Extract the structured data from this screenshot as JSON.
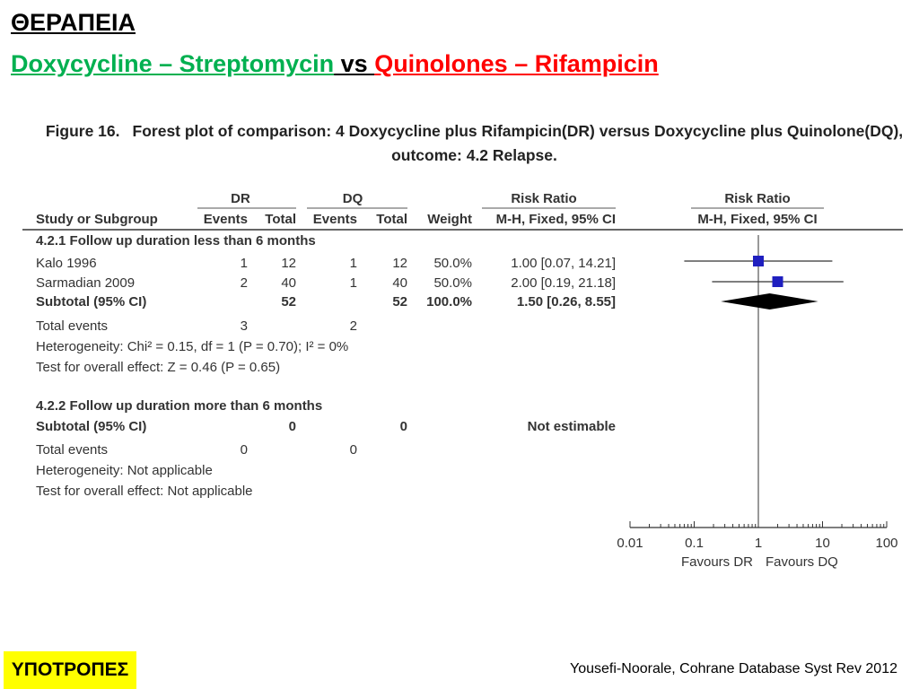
{
  "slide": {
    "title": "ΘΕΡΑΠΕΙΑ",
    "subtitle_left": "Doxycycline – Streptomycin",
    "subtitle_vs": " vs ",
    "subtitle_right": "Quinolones – Rifampicin",
    "badge": "ΥΠΟΤΡΟΠΕΣ",
    "source": "Yousefi-Noorale, Cohrane Database Syst Rev 2012"
  },
  "figure": {
    "caption_label": "Figure 16.",
    "caption_text": "Forest plot of comparison: 4 Doxycycline plus Rifampicin(DR) versus Doxycycline plus Quinolone(DQ), outcome: 4.2 Relapse."
  },
  "table": {
    "group_headers": {
      "dr": "DR",
      "dq": "DQ",
      "rr": "Risk Ratio",
      "plot": "Risk Ratio"
    },
    "col_headers": {
      "study": "Study or Subgroup",
      "dr_events": "Events",
      "dr_total": "Total",
      "dq_events": "Events",
      "dq_total": "Total",
      "weight": "Weight",
      "rr_method": "M-H, Fixed, 95% CI",
      "plot_method": "M-H, Fixed, 95% CI"
    },
    "subgroup1": {
      "title": "4.2.1 Follow up duration less than 6 months",
      "studies": [
        {
          "name": "Kalo 1996",
          "dr_events": "1",
          "dr_total": "12",
          "dq_events": "1",
          "dq_total": "12",
          "weight": "50.0%",
          "rr_text": "1.00 [0.07, 14.21]"
        },
        {
          "name": "Sarmadian 2009",
          "dr_events": "2",
          "dr_total": "40",
          "dq_events": "1",
          "dq_total": "40",
          "weight": "50.0%",
          "rr_text": "2.00 [0.19, 21.18]"
        }
      ],
      "subtotal": {
        "label": "Subtotal (95% CI)",
        "dr_total": "52",
        "dq_total": "52",
        "weight": "100.0%",
        "rr_text": "1.50 [0.26, 8.55]"
      },
      "total_events": {
        "label": "Total events",
        "dr": "3",
        "dq": "2"
      },
      "heterogeneity": "Heterogeneity: Chi² = 0.15, df = 1 (P = 0.70); I² = 0%",
      "overall": "Test for overall effect: Z = 0.46 (P = 0.65)"
    },
    "subgroup2": {
      "title": "4.2.2 Follow up duration more than 6 months",
      "subtotal": {
        "label": "Subtotal (95% CI)",
        "dr_total": "0",
        "dq_total": "0",
        "rr_text": "Not estimable"
      },
      "total_events": {
        "label": "Total events",
        "dr": "0",
        "dq": "0"
      },
      "heterogeneity": "Heterogeneity: Not applicable",
      "overall": "Test for overall effect: Not applicable"
    }
  },
  "chart_data": {
    "type": "scatter",
    "scale": "log",
    "xlim": [
      0.01,
      100
    ],
    "x_ticks": [
      "0.01",
      "0.1",
      "1",
      "10",
      "100"
    ],
    "x_tick_values": [
      0.01,
      0.1,
      1,
      10,
      100
    ],
    "favours_left": "Favours DR",
    "favours_right": "Favours DQ",
    "points": [
      {
        "study": "Kalo 1996",
        "rr": 1.0,
        "lo": 0.07,
        "hi": 14.21
      },
      {
        "study": "Sarmadian 2009",
        "rr": 2.0,
        "lo": 0.19,
        "hi": 21.18
      }
    ],
    "diamond": {
      "rr": 1.5,
      "lo": 0.26,
      "hi": 8.55
    },
    "colors": {
      "marker": "#1f1fbf",
      "diamond": "#000000"
    }
  }
}
